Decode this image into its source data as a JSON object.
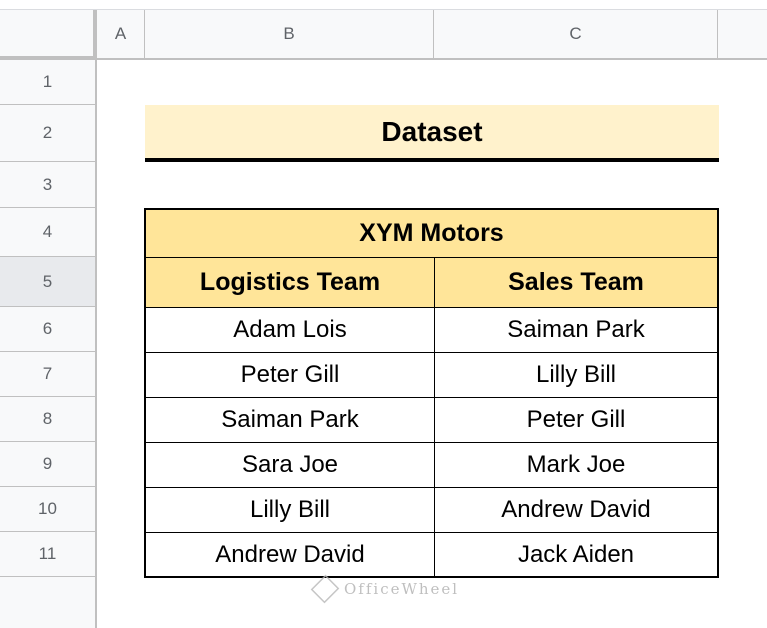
{
  "columns": [
    "A",
    "B",
    "C"
  ],
  "rows": [
    "1",
    "2",
    "3",
    "4",
    "5",
    "6",
    "7",
    "8",
    "9",
    "10",
    "11"
  ],
  "selected_row": "5",
  "title": "Dataset",
  "table": {
    "caption": "XYM Motors",
    "headers": [
      "Logistics Team",
      "Sales Team"
    ],
    "data": [
      [
        "Adam Lois",
        "Saiman Park"
      ],
      [
        "Peter Gill",
        "Lilly Bill"
      ],
      [
        "Saiman Park",
        "Peter Gill"
      ],
      [
        "Sara Joe",
        "Mark Joe"
      ],
      [
        "Lilly Bill",
        "Andrew David"
      ],
      [
        "Andrew David",
        "Jack Aiden"
      ]
    ]
  },
  "watermark": "OfficeWheel",
  "colors": {
    "title_bg": "#fff2cc",
    "header_bg": "#ffe599"
  }
}
